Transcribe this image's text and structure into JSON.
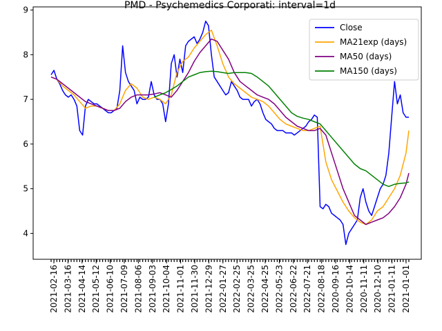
{
  "chart_data": {
    "type": "line",
    "title": "PMD - Psychemedics Corporati: interval=1d",
    "xlabel": "",
    "ylabel": "",
    "ylim": [
      3.42,
      9.07
    ],
    "yticks": [
      4,
      5,
      6,
      7,
      8,
      9
    ],
    "x_tick_labels": [
      "2021-02-16",
      "2021-03-16",
      "2021-04-14",
      "2021-05-12",
      "2021-06-10",
      "2021-07-09",
      "2021-08-06",
      "2021-09-03",
      "2021-10-04",
      "2021-11-01",
      "2021-11-30",
      "2021-12-29",
      "2022-01-27",
      "2022-02-25",
      "2022-03-25",
      "2022-04-25",
      "2022-05-23",
      "2022-06-22",
      "2022-07-21",
      "2022-08-18",
      "2020-09-16",
      "2020-10-14",
      "2020-11-11",
      "2020-12-10",
      "2021-01-11",
      "2021-01-01"
    ],
    "grid": false,
    "legend_position": "top-right",
    "series": [
      {
        "name": "Close",
        "color": "#0000ff",
        "x": [
          0,
          1,
          2,
          3,
          4,
          5,
          6,
          7,
          8,
          9,
          10,
          11,
          12,
          13,
          14,
          15,
          16,
          17,
          18,
          19,
          20,
          21,
          22,
          23,
          24,
          25,
          26,
          27,
          28,
          29,
          30,
          31,
          32,
          33,
          34,
          35,
          36,
          37,
          38,
          39,
          40,
          41,
          42,
          43,
          44,
          45,
          46,
          47,
          48,
          49,
          50,
          51,
          52,
          53,
          54,
          55,
          56,
          57,
          58,
          59,
          60,
          61,
          62,
          63,
          64,
          65,
          66,
          67,
          68,
          69,
          70,
          71,
          72,
          73,
          74,
          75,
          76,
          77,
          78,
          79,
          80,
          81,
          82,
          83,
          84,
          85,
          86,
          87,
          88,
          89,
          90,
          91,
          92,
          93,
          94,
          95,
          96,
          97,
          98,
          99,
          100,
          101,
          102,
          103,
          104,
          105,
          106,
          107,
          108,
          109,
          110,
          111,
          112,
          113,
          114,
          115,
          116,
          117,
          118,
          119,
          120,
          121,
          122,
          123,
          124,
          125
        ],
        "values": [
          7.55,
          7.65,
          7.45,
          7.35,
          7.2,
          7.1,
          7.05,
          7.1,
          7.0,
          6.85,
          6.3,
          6.2,
          6.85,
          7.0,
          6.95,
          6.9,
          6.9,
          6.85,
          6.8,
          6.75,
          6.7,
          6.7,
          6.75,
          6.8,
          7.2,
          8.2,
          7.6,
          7.4,
          7.3,
          7.2,
          6.9,
          7.05,
          7.0,
          7.0,
          7.05,
          7.4,
          7.1,
          7.0,
          7.0,
          6.9,
          6.5,
          6.9,
          7.8,
          8.0,
          7.5,
          7.9,
          7.6,
          8.2,
          8.3,
          8.35,
          8.4,
          8.25,
          8.35,
          8.5,
          8.75,
          8.65,
          8.0,
          7.5,
          7.4,
          7.3,
          7.2,
          7.1,
          7.15,
          7.4,
          7.3,
          7.2,
          7.05,
          7.0,
          7.0,
          7.0,
          6.85,
          6.95,
          7.0,
          6.9,
          6.7,
          6.55,
          6.5,
          6.45,
          6.35,
          6.3,
          6.3,
          6.3,
          6.25,
          6.25,
          6.25,
          6.2,
          6.25,
          6.3,
          6.35,
          6.4,
          6.5,
          6.55,
          6.65,
          6.6,
          4.6,
          4.55,
          4.65,
          4.6,
          4.45,
          4.4,
          4.35,
          4.3,
          4.2,
          3.75,
          4.0,
          4.1,
          4.2,
          4.3,
          4.8,
          5.0,
          4.7,
          4.5,
          4.4,
          4.6,
          4.8,
          5.0,
          5.1,
          5.3,
          5.8,
          6.6,
          7.4,
          6.9,
          7.1,
          6.7,
          6.6,
          6.6
        ]
      },
      {
        "name": "MA21exp (days)",
        "color": "#ffa500",
        "x": [
          0,
          2,
          4,
          6,
          8,
          10,
          12,
          14,
          16,
          18,
          20,
          22,
          24,
          26,
          28,
          30,
          32,
          34,
          36,
          38,
          40,
          42,
          44,
          46,
          48,
          50,
          52,
          54,
          56,
          58,
          60,
          62,
          64,
          66,
          68,
          70,
          72,
          74,
          76,
          78,
          80,
          82,
          84,
          86,
          88,
          90,
          92,
          94,
          96,
          98,
          100,
          102,
          104,
          106,
          108,
          110,
          112,
          114,
          116,
          118,
          120,
          122,
          124,
          125
        ],
        "values": [
          7.5,
          7.45,
          7.3,
          7.2,
          7.1,
          6.95,
          6.8,
          6.85,
          6.85,
          6.8,
          6.75,
          6.75,
          6.9,
          7.2,
          7.35,
          7.25,
          7.05,
          7.0,
          7.05,
          7.0,
          6.9,
          7.1,
          7.6,
          7.85,
          7.95,
          8.15,
          8.3,
          8.45,
          8.55,
          8.2,
          7.8,
          7.5,
          7.35,
          7.25,
          7.15,
          7.05,
          7.0,
          6.95,
          6.85,
          6.7,
          6.55,
          6.45,
          6.4,
          6.35,
          6.3,
          6.3,
          6.35,
          6.4,
          5.6,
          5.2,
          4.95,
          4.7,
          4.5,
          4.35,
          4.25,
          4.2,
          4.3,
          4.5,
          4.6,
          4.8,
          5.0,
          5.3,
          5.8,
          6.3
        ]
      },
      {
        "name": "MA50 (days)",
        "color": "#800080",
        "x": [
          0,
          2,
          4,
          6,
          8,
          10,
          12,
          14,
          16,
          18,
          20,
          22,
          24,
          26,
          28,
          30,
          32,
          34,
          36,
          38,
          40,
          42,
          44,
          46,
          48,
          50,
          52,
          54,
          56,
          58,
          60,
          62,
          64,
          66,
          68,
          70,
          72,
          74,
          76,
          78,
          80,
          82,
          84,
          86,
          88,
          90,
          92,
          94,
          96,
          98,
          100,
          102,
          104,
          106,
          108,
          110,
          112,
          114,
          116,
          118,
          120,
          122,
          124,
          125
        ],
        "values": [
          7.5,
          7.45,
          7.35,
          7.25,
          7.15,
          7.05,
          6.95,
          6.9,
          6.85,
          6.8,
          6.75,
          6.75,
          6.8,
          6.95,
          7.05,
          7.1,
          7.1,
          7.1,
          7.12,
          7.15,
          7.1,
          7.05,
          7.2,
          7.4,
          7.6,
          7.85,
          8.05,
          8.2,
          8.35,
          8.3,
          8.1,
          7.9,
          7.6,
          7.4,
          7.3,
          7.2,
          7.1,
          7.05,
          7.0,
          6.9,
          6.75,
          6.6,
          6.5,
          6.4,
          6.35,
          6.3,
          6.3,
          6.35,
          6.2,
          5.8,
          5.4,
          5.0,
          4.7,
          4.4,
          4.3,
          4.2,
          4.25,
          4.3,
          4.35,
          4.45,
          4.6,
          4.8,
          5.1,
          5.35
        ]
      },
      {
        "name": "MA150 (days)",
        "color": "#008000",
        "x": [
          36,
          38,
          40,
          42,
          44,
          46,
          48,
          50,
          52,
          54,
          56,
          58,
          60,
          62,
          64,
          66,
          68,
          70,
          72,
          74,
          76,
          78,
          80,
          82,
          84,
          86,
          88,
          90,
          92,
          94,
          96,
          98,
          100,
          102,
          104,
          106,
          108,
          110,
          112,
          114,
          116,
          118,
          120,
          122,
          124,
          125
        ],
        "values": [
          7.05,
          7.1,
          7.15,
          7.22,
          7.3,
          7.4,
          7.5,
          7.55,
          7.6,
          7.62,
          7.63,
          7.62,
          7.6,
          7.58,
          7.6,
          7.6,
          7.6,
          7.58,
          7.5,
          7.4,
          7.3,
          7.15,
          7.0,
          6.85,
          6.7,
          6.62,
          6.58,
          6.55,
          6.5,
          6.45,
          6.3,
          6.15,
          6.0,
          5.85,
          5.7,
          5.55,
          5.45,
          5.4,
          5.3,
          5.2,
          5.1,
          5.05,
          5.1,
          5.12,
          5.13,
          5.15
        ]
      }
    ]
  }
}
